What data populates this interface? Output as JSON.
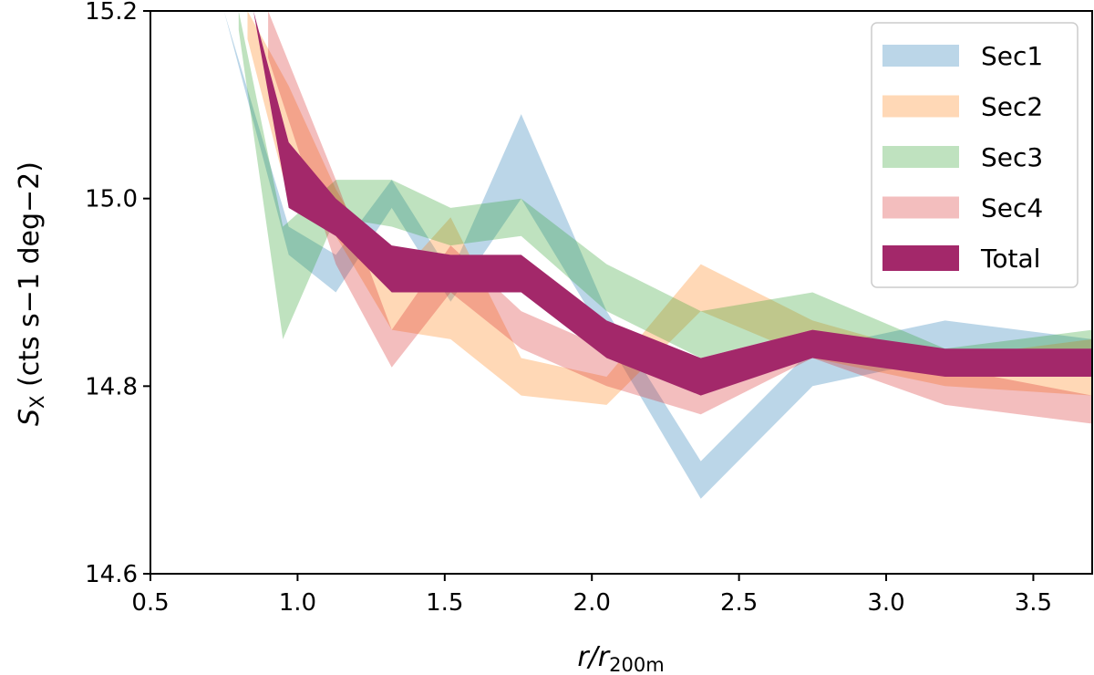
{
  "chart_data": {
    "type": "area",
    "xlabel": "r/r_200m",
    "xlabel_main": "r/r",
    "xlabel_sub": "200m",
    "ylabel_main": "S",
    "ylabel_sub": "X",
    "ylabel_units": " (cts s−1 deg−2)",
    "xlim": [
      0.5,
      3.7
    ],
    "ylim": [
      14.6,
      15.2
    ],
    "x_ticks": [
      0.5,
      1.0,
      1.5,
      2.0,
      2.5,
      3.0,
      3.5
    ],
    "x_tick_labels": [
      "0.5",
      "1.0",
      "1.5",
      "2.0",
      "2.5",
      "3.0",
      "3.5"
    ],
    "y_ticks": [
      14.6,
      14.8,
      15.0,
      15.2
    ],
    "y_tick_labels": [
      "14.6",
      "14.8",
      "15.0",
      "15.2"
    ],
    "grid": false,
    "legend_position": "top-right",
    "series": [
      {
        "name": "Sec1",
        "color": "#1f77b4",
        "opacity": 0.3,
        "x": [
          0.75,
          0.97,
          1.13,
          1.32,
          1.52,
          1.76,
          2.05,
          2.37,
          2.75,
          3.2,
          3.7
        ],
        "lower": [
          15.2,
          14.94,
          14.9,
          14.99,
          14.89,
          15.0,
          14.85,
          14.68,
          14.8,
          14.83,
          14.83
        ],
        "upper": [
          15.2,
          14.97,
          14.94,
          15.02,
          14.92,
          15.09,
          14.88,
          14.72,
          14.84,
          14.87,
          14.85
        ]
      },
      {
        "name": "Sec2",
        "color": "#ff7f0e",
        "opacity": 0.3,
        "x": [
          0.83,
          0.97,
          1.13,
          1.32,
          1.52,
          1.76,
          2.05,
          2.37,
          2.75,
          3.2,
          3.7
        ],
        "lower": [
          15.17,
          15.0,
          14.96,
          14.86,
          14.85,
          14.79,
          14.78,
          14.88,
          14.83,
          14.8,
          14.79
        ],
        "upper": [
          15.2,
          15.12,
          15.01,
          14.91,
          14.98,
          14.83,
          14.81,
          14.93,
          14.87,
          14.83,
          14.85
        ]
      },
      {
        "name": "Sec3",
        "color": "#2ca02c",
        "opacity": 0.3,
        "x": [
          0.8,
          0.95,
          1.13,
          1.32,
          1.52,
          1.76,
          2.05,
          2.37,
          2.75,
          3.2,
          3.7
        ],
        "lower": [
          15.18,
          14.85,
          14.98,
          14.97,
          14.95,
          14.96,
          14.88,
          14.83,
          14.86,
          14.83,
          14.83
        ],
        "upper": [
          15.2,
          14.97,
          15.02,
          15.02,
          14.99,
          15.0,
          14.93,
          14.88,
          14.9,
          14.84,
          14.86
        ]
      },
      {
        "name": "Sec4",
        "color": "#d62728",
        "opacity": 0.3,
        "x": [
          0.9,
          1.13,
          1.32,
          1.52,
          1.76,
          2.05,
          2.37,
          2.75,
          3.2,
          3.7
        ],
        "lower": [
          15.15,
          14.93,
          14.82,
          14.9,
          14.84,
          14.8,
          14.77,
          14.83,
          14.78,
          14.76
        ],
        "upper": [
          15.2,
          15.02,
          14.86,
          14.95,
          14.88,
          14.84,
          14.8,
          14.86,
          14.82,
          14.79
        ]
      },
      {
        "name": "Total",
        "color": "#a3286a",
        "opacity": 1.0,
        "x": [
          0.85,
          0.97,
          1.13,
          1.32,
          1.52,
          1.76,
          2.05,
          2.37,
          2.75,
          3.2,
          3.7
        ],
        "lower": [
          15.2,
          14.99,
          14.96,
          14.9,
          14.9,
          14.9,
          14.83,
          14.79,
          14.83,
          14.81,
          14.81
        ],
        "upper": [
          15.2,
          15.06,
          15.0,
          14.95,
          14.94,
          14.94,
          14.87,
          14.83,
          14.86,
          14.84,
          14.84
        ]
      }
    ]
  }
}
